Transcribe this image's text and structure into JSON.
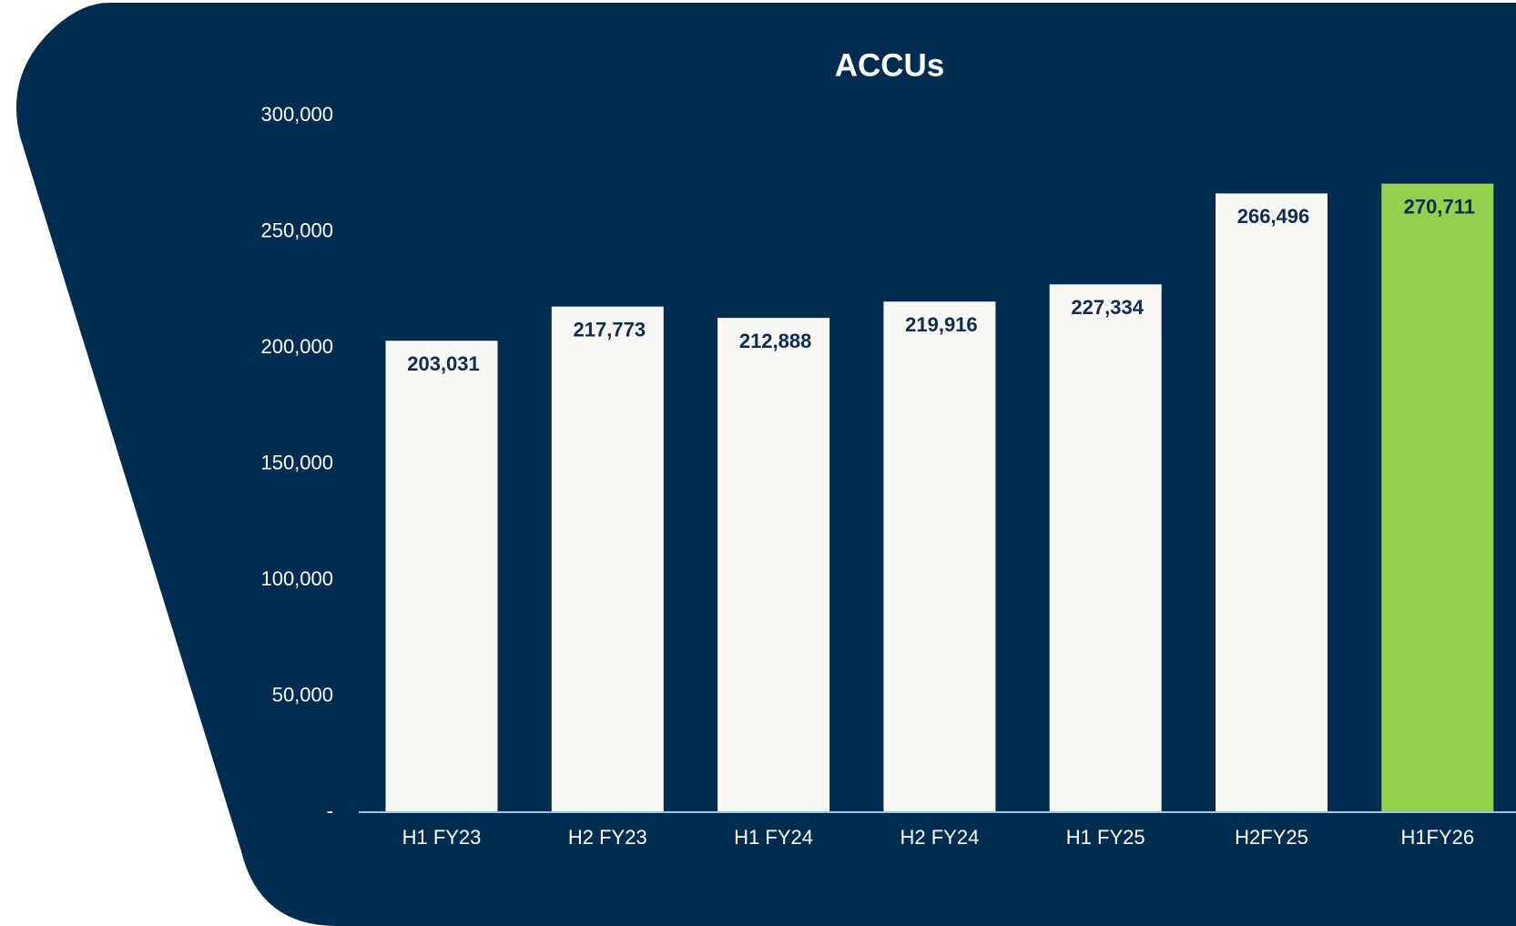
{
  "chart_data": {
    "type": "bar",
    "title": "ACCUs",
    "categories": [
      "H1 FY23",
      "H2 FY23",
      "H1 FY24",
      "H2 FY24",
      "H1 FY25",
      "H2FY25",
      "H1FY26"
    ],
    "values": [
      203031,
      217773,
      212888,
      219916,
      227334,
      266496,
      270711
    ],
    "value_labels": [
      "203,031",
      "217,773",
      "212,888",
      "219,916",
      "227,334",
      "266,496",
      "270,711"
    ],
    "colors": [
      "#f8f7f4",
      "#f8f7f4",
      "#f8f7f4",
      "#f8f7f4",
      "#f8f7f4",
      "#f8f7f4",
      "#92d050"
    ],
    "ylim": [
      0,
      300000
    ],
    "yticks": [
      {
        "value": 0,
        "label": "-"
      },
      {
        "value": 50000,
        "label": "50,000"
      },
      {
        "value": 100000,
        "label": "100,000"
      },
      {
        "value": 150000,
        "label": "150,000"
      },
      {
        "value": 200000,
        "label": "200,000"
      },
      {
        "value": 250000,
        "label": "250,000"
      },
      {
        "value": 300000,
        "label": "300,000"
      }
    ],
    "grid": false
  }
}
